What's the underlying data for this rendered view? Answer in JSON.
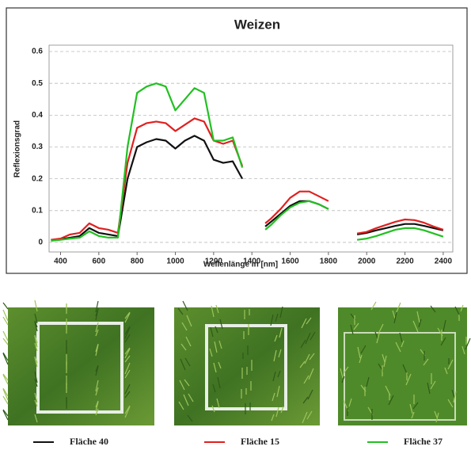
{
  "chart_data": {
    "type": "line",
    "title": "Weizen",
    "x_label": "Wellenlänge in [nm]",
    "y_label": "Reflexionsgrad",
    "xlim": [
      340,
      2450
    ],
    "ylim": [
      -0.03,
      0.62
    ],
    "xticks": [
      400,
      600,
      800,
      1000,
      1200,
      1400,
      1600,
      1800,
      2000,
      2200,
      2400
    ],
    "yticks": [
      0,
      0.1,
      0.2,
      0.3,
      0.4,
      0.5,
      0.6
    ],
    "grid": true,
    "x": [
      350,
      400,
      450,
      500,
      550,
      600,
      650,
      700,
      750,
      800,
      850,
      900,
      950,
      1000,
      1050,
      1100,
      1150,
      1200,
      1250,
      1300,
      1350,
      1400,
      1470,
      1500,
      1550,
      1600,
      1650,
      1700,
      1750,
      1800,
      1875,
      1950,
      2000,
      2050,
      2100,
      2150,
      2200,
      2250,
      2300,
      2350,
      2400
    ],
    "series": [
      {
        "name": "Fläche 40",
        "color": "#111111",
        "values": [
          0.008,
          0.01,
          0.015,
          0.02,
          0.045,
          0.03,
          0.025,
          0.02,
          0.2,
          0.3,
          0.315,
          0.325,
          0.32,
          0.295,
          0.32,
          0.335,
          0.32,
          0.26,
          0.25,
          0.255,
          0.2,
          null,
          0.05,
          0.065,
          0.09,
          0.115,
          0.13,
          0.13,
          0.12,
          0.105,
          null,
          0.025,
          0.03,
          0.038,
          0.045,
          0.052,
          0.058,
          0.058,
          0.052,
          0.045,
          0.038
        ]
      },
      {
        "name": "Fläche 15",
        "color": "#e02020",
        "values": [
          0.008,
          0.012,
          0.025,
          0.03,
          0.06,
          0.045,
          0.04,
          0.03,
          0.25,
          0.36,
          0.375,
          0.38,
          0.375,
          0.35,
          0.37,
          0.39,
          0.38,
          0.32,
          0.31,
          0.32,
          0.24,
          null,
          0.06,
          0.075,
          0.105,
          0.14,
          0.16,
          0.16,
          0.145,
          0.13,
          null,
          0.028,
          0.033,
          0.045,
          0.055,
          0.065,
          0.072,
          0.07,
          0.062,
          0.05,
          0.04
        ]
      },
      {
        "name": "Fläche 37",
        "color": "#22c022",
        "values": [
          0.005,
          0.008,
          0.012,
          0.015,
          0.035,
          0.02,
          0.015,
          0.015,
          0.3,
          0.47,
          0.49,
          0.5,
          0.49,
          0.415,
          0.45,
          0.485,
          0.47,
          0.32,
          0.32,
          0.33,
          0.235,
          null,
          0.04,
          0.055,
          0.085,
          0.11,
          0.125,
          0.13,
          0.12,
          0.105,
          null,
          0.008,
          0.012,
          0.02,
          0.03,
          0.04,
          0.045,
          0.045,
          0.038,
          0.028,
          0.018
        ]
      }
    ]
  }
}
